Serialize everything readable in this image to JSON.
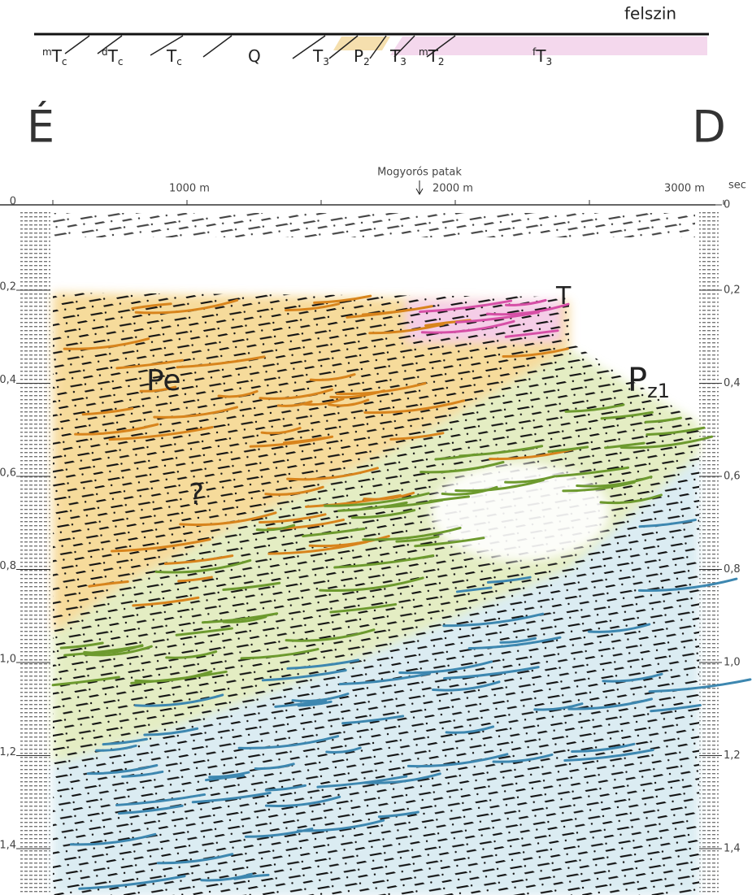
{
  "surface": {
    "label": "felszin",
    "units": [
      {
        "pre": "m",
        "main": "T",
        "sub": "c"
      },
      {
        "pre": "d",
        "main": "T",
        "sub": "c"
      },
      {
        "main": "T",
        "sub": "c"
      },
      {
        "main": "Q"
      },
      {
        "main": "T",
        "sub": "3"
      },
      {
        "main": "P",
        "sub": "2"
      },
      {
        "main": "T",
        "sub": "3"
      },
      {
        "pre": "m",
        "main": "T",
        "sub": "2"
      },
      {
        "pre": "f",
        "main": "T",
        "sub": "3"
      }
    ]
  },
  "directions": {
    "left": "É",
    "right": "D"
  },
  "profile": {
    "landmark": "Mogyorós patak",
    "distances": [
      "1000 m",
      "2000 m",
      "3000 m"
    ],
    "time_unit": "sec",
    "time_ticks": [
      "0",
      "0,2",
      "0,4",
      "0,6",
      "0,8",
      "1,0",
      "1,2",
      "1,4"
    ],
    "zones": [
      {
        "main": "Pe"
      },
      {
        "main": "?"
      },
      {
        "main": "T"
      },
      {
        "main": "P",
        "sub": "z1"
      }
    ]
  }
}
